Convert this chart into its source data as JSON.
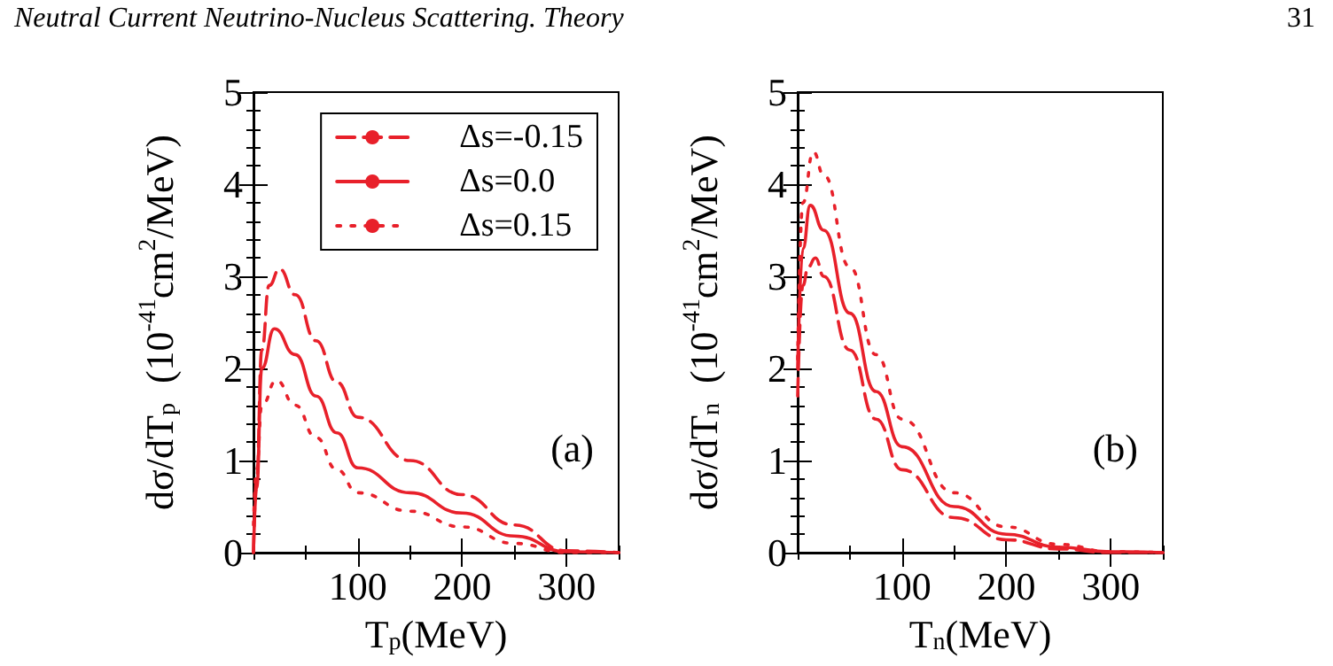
{
  "chart_data": [
    {
      "type": "line",
      "xlabel": "T$_{p}$(MeV)",
      "ylabel": "dσ/dT$_{p}$  (10$^{-41}$cm$^{2}$/MeV)",
      "xlim": [
        0,
        350
      ],
      "xticks": [
        100,
        200,
        300
      ],
      "ylim": [
        0,
        5
      ],
      "yticks": [
        0,
        1,
        2,
        3,
        4,
        5
      ],
      "grid": false,
      "legend": "top right",
      "annotations": [
        "(a)",
        "Neutral Current Neutrino-Nucleus Scattering. Theory",
        "31"
      ],
      "series": [
        {
          "name": "Δs=-0.15",
          "color": "#e8202a",
          "line_style": "dashed",
          "x": [
            0,
            3,
            8,
            15,
            25,
            40,
            60,
            80,
            100,
            150,
            200,
            250,
            300,
            350
          ],
          "values": [
            0,
            0.8,
            2.2,
            2.9,
            3.08,
            2.8,
            2.3,
            1.85,
            1.47,
            1.0,
            0.63,
            0.3,
            0.02,
            0
          ]
        },
        {
          "name": "Δs=0.0",
          "color": "#e8202a",
          "line_style": "solid",
          "x": [
            0,
            3,
            8,
            20,
            40,
            60,
            80,
            100,
            150,
            200,
            250,
            300,
            350
          ],
          "values": [
            0,
            0.7,
            2.0,
            2.43,
            2.15,
            1.7,
            1.3,
            0.92,
            0.65,
            0.43,
            0.18,
            0.01,
            0
          ]
        },
        {
          "name": "Δs=0.15",
          "color": "#e8202a",
          "line_style": "dotted",
          "x": [
            0,
            3,
            8,
            22,
            40,
            60,
            80,
            100,
            150,
            200,
            250,
            300,
            350
          ],
          "values": [
            0.3,
            0.9,
            1.6,
            1.87,
            1.6,
            1.25,
            0.9,
            0.65,
            0.45,
            0.28,
            0.1,
            0,
            0
          ]
        }
      ]
    },
    {
      "type": "line",
      "xlabel": "T$_{n}$(MeV)",
      "ylabel": "dσ/dT$_{n}$  (10$^{-41}$cm$^{2}$/MeV)",
      "xlim": [
        0,
        350
      ],
      "xticks": [
        100,
        200,
        300
      ],
      "ylim": [
        0,
        5
      ],
      "yticks": [
        0,
        1,
        2,
        3,
        4,
        5
      ],
      "grid": false,
      "annotations": [
        "(b)"
      ],
      "series": [
        {
          "color": "#e8202a",
          "line_style": "dashed",
          "x": [
            0,
            5,
            10,
            17,
            25,
            50,
            75,
            100,
            150,
            200,
            250,
            300,
            350
          ],
          "values": [
            1.7,
            2.9,
            3.1,
            3.2,
            3.0,
            2.2,
            1.45,
            0.9,
            0.38,
            0.14,
            0.04,
            0,
            0
          ]
        },
        {
          "color": "#e8202a",
          "line_style": "solid",
          "x": [
            0,
            5,
            12,
            25,
            50,
            75,
            100,
            150,
            200,
            250,
            300,
            350
          ],
          "values": [
            2.0,
            3.3,
            3.77,
            3.5,
            2.6,
            1.75,
            1.15,
            0.5,
            0.2,
            0.06,
            0.01,
            0
          ]
        },
        {
          "color": "#e8202a",
          "line_style": "dotted",
          "x": [
            0,
            5,
            15,
            25,
            50,
            75,
            100,
            150,
            200,
            250,
            300,
            350
          ],
          "values": [
            2.1,
            3.8,
            4.35,
            4.1,
            3.1,
            2.15,
            1.45,
            0.65,
            0.28,
            0.09,
            0.01,
            0
          ]
        }
      ]
    }
  ]
}
